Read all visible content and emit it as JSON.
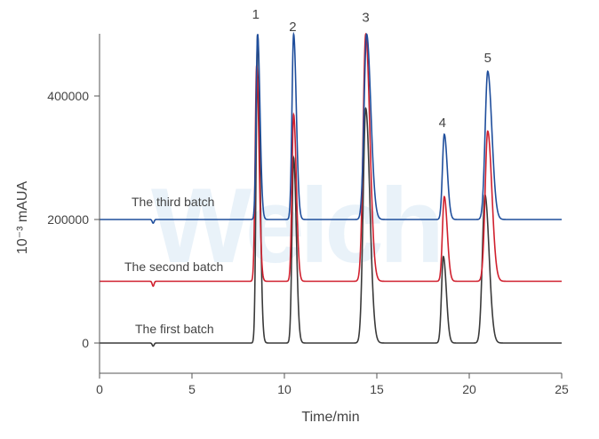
{
  "chart_data": {
    "type": "line",
    "xlabel": "Time/min",
    "ylabel": "10⁻³ mAUA",
    "xlim": [
      0,
      25
    ],
    "ylim": [
      -50000,
      500000
    ],
    "x_ticks": [
      "0",
      "5",
      "10",
      "15",
      "20",
      "25"
    ],
    "y_ticks": [
      "0",
      "200000",
      "400000"
    ],
    "grid": false,
    "watermark": "Welch",
    "series": [
      {
        "name": "The first batch",
        "color": "#3a3a3a",
        "baseline": 0,
        "dip": {
          "x": 2.9,
          "depth": 5000
        },
        "peaks": [
          {
            "x": 8.55,
            "height": 500000,
            "width": 0.08
          },
          {
            "x": 10.5,
            "height": 300000,
            "width": 0.09
          },
          {
            "x": 14.4,
            "height": 380000,
            "width": 0.14
          },
          {
            "x": 18.6,
            "height": 140000,
            "width": 0.1
          },
          {
            "x": 20.85,
            "height": 240000,
            "width": 0.14
          }
        ]
      },
      {
        "name": "The second batch",
        "color": "#d0202e",
        "baseline": 100000,
        "dip": {
          "x": 2.9,
          "depth": 8000
        },
        "peaks": [
          {
            "x": 8.5,
            "height": 350000,
            "width": 0.08
          },
          {
            "x": 10.5,
            "height": 270000,
            "width": 0.09
          },
          {
            "x": 14.4,
            "height": 400000,
            "width": 0.14
          },
          {
            "x": 18.65,
            "height": 137000,
            "width": 0.1
          },
          {
            "x": 21.0,
            "height": 243000,
            "width": 0.14
          }
        ]
      },
      {
        "name": "The third batch",
        "color": "#1f4e9c",
        "baseline": 200000,
        "dip": {
          "x": 2.9,
          "depth": 6000
        },
        "peaks": [
          {
            "x": 8.55,
            "height": 300000,
            "width": 0.08
          },
          {
            "x": 10.5,
            "height": 300000,
            "width": 0.09
          },
          {
            "x": 14.45,
            "height": 300000,
            "width": 0.14
          },
          {
            "x": 18.65,
            "height": 138000,
            "width": 0.1
          },
          {
            "x": 21.0,
            "height": 240000,
            "width": 0.14
          }
        ]
      }
    ],
    "peak_labels": [
      {
        "text": "1",
        "x": 8.45,
        "y": 525000
      },
      {
        "text": "2",
        "x": 10.45,
        "y": 505000
      },
      {
        "text": "3",
        "x": 14.4,
        "y": 520000
      },
      {
        "text": "4",
        "x": 18.55,
        "y": 350000
      },
      {
        "text": "5",
        "x": 21.0,
        "y": 455000
      }
    ]
  }
}
